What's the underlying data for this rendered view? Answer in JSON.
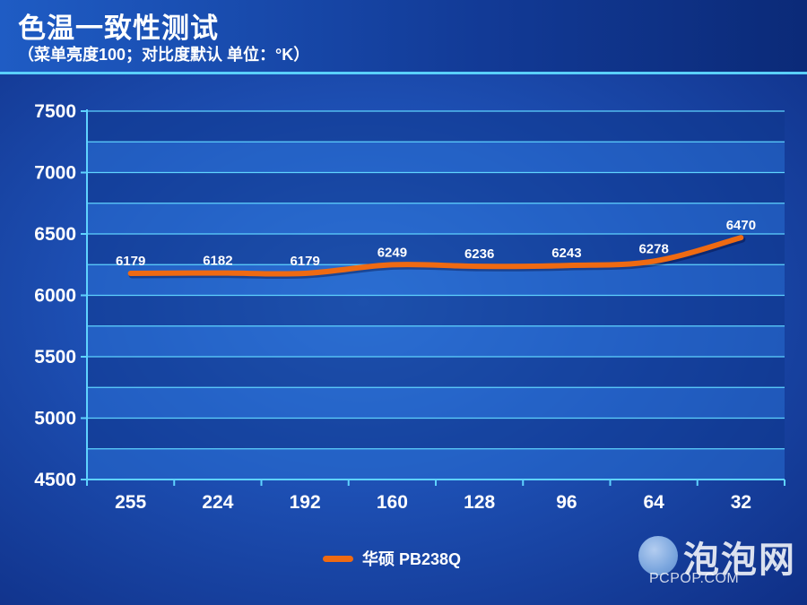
{
  "header": {
    "title": "色温一致性测试",
    "subtitle": "（菜单亮度100；对比度默认 单位：°K）"
  },
  "chart_data": {
    "type": "line",
    "categories": [
      "255",
      "224",
      "192",
      "160",
      "128",
      "96",
      "64",
      "32"
    ],
    "series": [
      {
        "name": "华硕 PB238Q",
        "values": [
          6179,
          6182,
          6179,
          6249,
          6236,
          6243,
          6278,
          6470
        ],
        "color": "#ef6a12"
      }
    ],
    "yticks": [
      4500,
      5000,
      5500,
      6000,
      6500,
      7000,
      7500
    ],
    "ylim": [
      4500,
      7500
    ],
    "grid": true,
    "legend_position": "bottom"
  },
  "logo": {
    "name": "泡泡网",
    "url": "PCPOP.COM"
  }
}
